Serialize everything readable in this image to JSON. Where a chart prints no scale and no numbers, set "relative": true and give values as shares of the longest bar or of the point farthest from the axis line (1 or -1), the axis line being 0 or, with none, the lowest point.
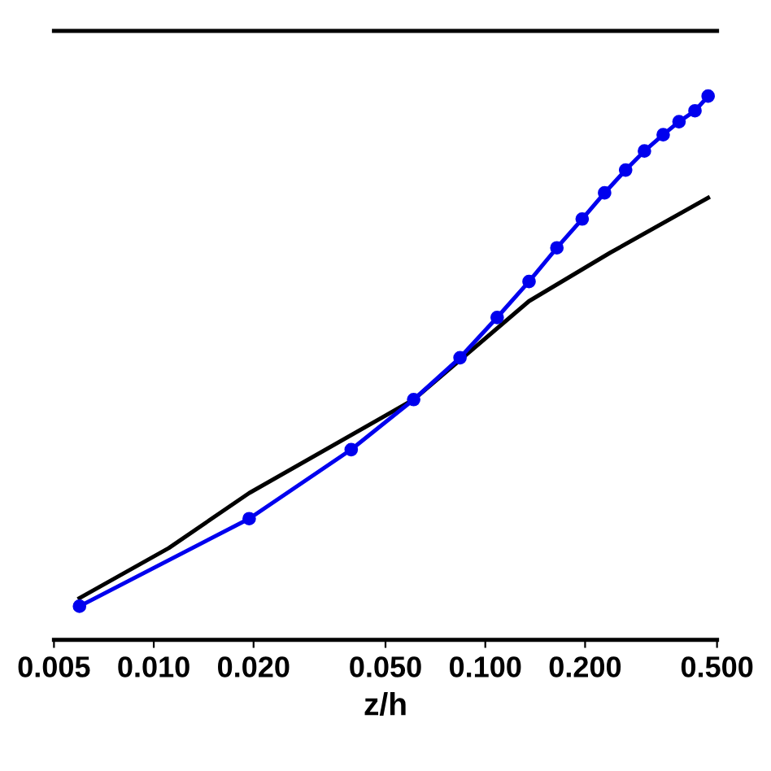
{
  "chart_data": {
    "type": "line",
    "xlabel": "z/h",
    "relative": true,
    "log": "x",
    "xlim": [
      0.005,
      0.5
    ],
    "xticks": [
      {
        "value": 0.005,
        "label": "0.005"
      },
      {
        "value": 0.01,
        "label": "0.010"
      },
      {
        "value": 0.02,
        "label": "0.020"
      },
      {
        "value": 0.05,
        "label": "0.050"
      },
      {
        "value": 0.1,
        "label": "0.100"
      },
      {
        "value": 0.2,
        "label": "0.200"
      },
      {
        "value": 0.5,
        "label": "0.500"
      }
    ],
    "grid": false,
    "legend": false,
    "series": [
      {
        "color": "#000000",
        "marker": "none",
        "x": [
          0.00597,
          0.0111,
          0.0194,
          0.0608,
          0.1355,
          0.238,
          0.47
        ],
        "values": [
          0.077,
          0.169,
          0.27,
          0.442,
          0.623,
          0.712,
          0.813
        ]
      },
      {
        "color": "#0000ee",
        "marker": "circle",
        "x": [
          0.00597,
          0.0194,
          0.0394,
          0.0608,
          0.0839,
          0.1086,
          0.1355,
          0.1644,
          0.196,
          0.229,
          0.265,
          0.302,
          0.344,
          0.384,
          0.429,
          0.47
        ],
        "values": [
          0.062,
          0.223,
          0.35,
          0.442,
          0.519,
          0.593,
          0.659,
          0.721,
          0.774,
          0.822,
          0.864,
          0.899,
          0.929,
          0.953,
          0.973,
          1.0
        ]
      }
    ]
  }
}
